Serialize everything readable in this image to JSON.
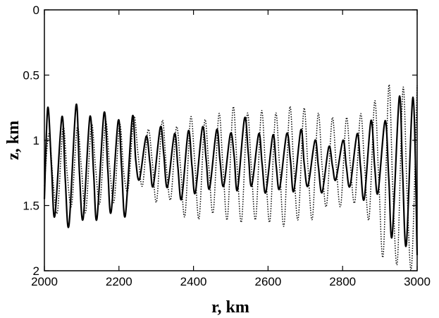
{
  "chart_data": {
    "type": "line",
    "xlabel": "r, km",
    "ylabel": "z, km",
    "xlim": [
      2000,
      3000
    ],
    "ylim": [
      0,
      2
    ],
    "y_inverted": true,
    "grid": false,
    "legend": "none",
    "xticks": [
      "2000",
      "2200",
      "2400",
      "2600",
      "2800",
      "3000"
    ],
    "yticks": [
      "0",
      "0.5",
      "1",
      "1.5",
      "2"
    ],
    "series": [
      {
        "style": "solid",
        "color": "#000000",
        "x": [
          2000,
          2009,
          2019,
          2028,
          2047,
          2056,
          2066,
          2085,
          2094,
          2104,
          2122,
          2132,
          2141,
          2160,
          2170,
          2179,
          2198,
          2207,
          2217,
          2236,
          2245,
          2255,
          2273,
          2283,
          2292,
          2311,
          2320,
          2330,
          2349,
          2358,
          2368,
          2386,
          2396,
          2405,
          2424,
          2434,
          2443,
          2462,
          2471,
          2481,
          2499,
          2509,
          2518,
          2537,
          2547,
          2556,
          2575,
          2584,
          2594,
          2613,
          2622,
          2631,
          2650,
          2660,
          2669,
          2688,
          2697,
          2707,
          2726,
          2735,
          2745,
          2763,
          2773,
          2782,
          2801,
          2810,
          2820,
          2839,
          2848,
          2858,
          2876,
          2886,
          2895,
          2914,
          2924,
          2933,
          2952,
          2961,
          2971,
          2989,
          3000
        ],
        "y": [
          1.45,
          0.75,
          1.2,
          1.58,
          0.82,
          1.3,
          1.65,
          0.73,
          1.25,
          1.6,
          0.82,
          1.25,
          1.6,
          0.79,
          1.22,
          1.55,
          0.85,
          1.2,
          1.58,
          0.82,
          1.15,
          1.3,
          0.97,
          1.17,
          1.35,
          0.9,
          1.1,
          1.36,
          0.95,
          1.2,
          1.45,
          0.93,
          1.2,
          1.4,
          0.9,
          1.15,
          1.37,
          0.92,
          1.15,
          1.35,
          0.95,
          1.12,
          1.38,
          0.83,
          1.1,
          1.35,
          0.95,
          1.18,
          1.4,
          0.96,
          1.2,
          1.37,
          0.95,
          1.15,
          1.39,
          0.92,
          1.18,
          1.35,
          1.0,
          1.2,
          1.4,
          1.05,
          1.2,
          1.3,
          1.0,
          1.2,
          1.35,
          0.95,
          1.2,
          1.45,
          0.85,
          1.2,
          1.4,
          0.85,
          1.3,
          1.73,
          0.67,
          1.25,
          1.8,
          0.67,
          1.88
        ]
      },
      {
        "style": "dotted",
        "color": "#000000",
        "x": [
          2000,
          2012,
          2023,
          2035,
          2050,
          2061,
          2073,
          2088,
          2099,
          2111,
          2126,
          2137,
          2149,
          2164,
          2175,
          2187,
          2202,
          2213,
          2225,
          2240,
          2251,
          2263,
          2278,
          2289,
          2301,
          2316,
          2327,
          2339,
          2354,
          2365,
          2377,
          2392,
          2403,
          2415,
          2430,
          2441,
          2453,
          2468,
          2479,
          2491,
          2506,
          2517,
          2529,
          2544,
          2555,
          2567,
          2582,
          2593,
          2605,
          2620,
          2631,
          2643,
          2658,
          2669,
          2681,
          2696,
          2707,
          2719,
          2734,
          2745,
          2757,
          2772,
          2783,
          2795,
          2810,
          2821,
          2833,
          2848,
          2859,
          2871,
          2886,
          2897,
          2909,
          2924,
          2935,
          2947,
          2962,
          2973,
          2985,
          3000
        ],
        "y": [
          1.35,
          0.95,
          1.3,
          1.55,
          0.9,
          1.25,
          1.5,
          0.9,
          1.2,
          1.55,
          0.88,
          1.2,
          1.48,
          0.86,
          1.2,
          1.47,
          0.88,
          1.25,
          1.37,
          0.82,
          1.1,
          1.35,
          0.92,
          1.15,
          1.47,
          0.85,
          1.2,
          1.45,
          0.9,
          1.2,
          1.58,
          0.83,
          1.15,
          1.6,
          0.85,
          1.2,
          1.55,
          0.8,
          1.2,
          1.6,
          0.75,
          1.2,
          1.62,
          0.8,
          1.2,
          1.6,
          0.78,
          1.2,
          1.62,
          0.8,
          1.2,
          1.65,
          0.75,
          1.2,
          1.6,
          0.76,
          1.2,
          1.6,
          0.8,
          1.2,
          1.5,
          0.83,
          1.2,
          1.5,
          0.83,
          1.2,
          1.47,
          0.8,
          1.2,
          1.6,
          0.7,
          1.3,
          1.88,
          0.58,
          1.4,
          1.93,
          0.6,
          1.4,
          1.97,
          0.58
        ]
      }
    ]
  }
}
